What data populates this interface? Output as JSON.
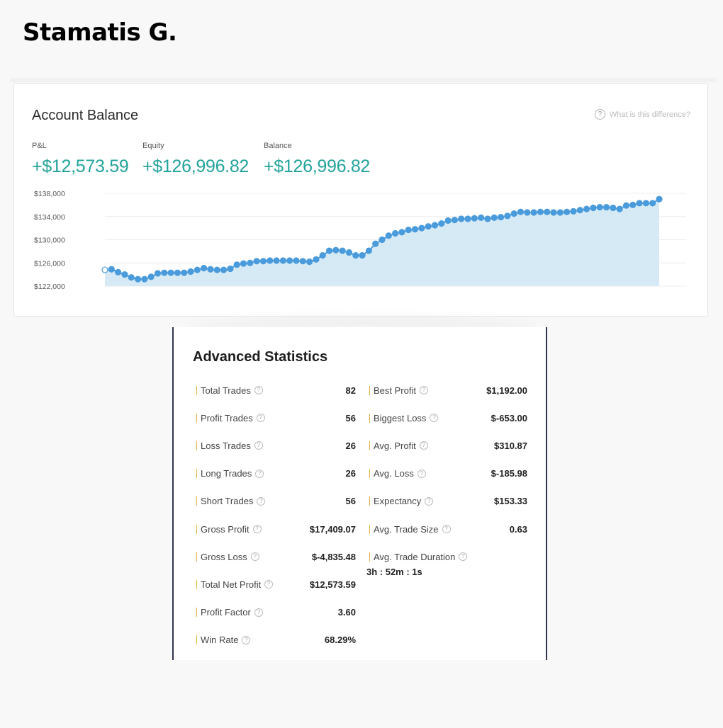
{
  "owner_name": "Stamatis G.",
  "account_card": {
    "title": "Account Balance",
    "help_text": "What is this difference?",
    "metrics": {
      "pnl_label": "P&L",
      "pnl_value": "+$12,573.59",
      "equity_label": "Equity",
      "equity_value": "+$126,996.82",
      "balance_label": "Balance",
      "balance_value": "+$126,996.82"
    },
    "accent_color": "#22a39a"
  },
  "chart_data": {
    "type": "area",
    "title": "",
    "xlabel": "",
    "ylabel": "",
    "ylim": [
      122000,
      138000
    ],
    "y_ticks": [
      "$138,000",
      "$134,000",
      "$130,000",
      "$126,000",
      "$122,000"
    ],
    "y_tick_values": [
      138000,
      134000,
      130000,
      126000,
      122000
    ],
    "grid": true,
    "line_color": "#4a9bdc",
    "fill_color": "#d6eaf6",
    "series": [
      {
        "values": [
          124800,
          124900,
          124400,
          124000,
          123500,
          123200,
          123200,
          123600,
          124200,
          124300,
          124300,
          124300,
          124300,
          124500,
          124800,
          125100,
          124900,
          124800,
          124800,
          125000,
          125700,
          125900,
          126000,
          126300,
          126300,
          126400,
          126400,
          126400,
          126400,
          126400,
          126300,
          126200,
          126600,
          127300,
          128100,
          128200,
          128100,
          127800,
          127300,
          127300,
          128100,
          129300,
          130000,
          130700,
          131100,
          131300,
          131700,
          131800,
          132000,
          132300,
          132500,
          132800,
          133300,
          133400,
          133600,
          133600,
          133700,
          133800,
          133600,
          133800,
          133900,
          134100,
          134500,
          134800,
          134700,
          134700,
          134800,
          134800,
          134700,
          134700,
          134800,
          134900,
          135100,
          135300,
          135500,
          135600,
          135600,
          135500,
          135300,
          135900,
          136000,
          136300,
          136300,
          136300,
          137000
        ]
      }
    ]
  },
  "advanced_stats": {
    "title": "Advanced Statistics",
    "left": [
      {
        "label": "Total Trades",
        "value": "82"
      },
      {
        "label": "Profit Trades",
        "value": "56"
      },
      {
        "label": "Loss Trades",
        "value": "26"
      },
      {
        "label": "Long Trades",
        "value": "26"
      },
      {
        "label": "Short Trades",
        "value": "56"
      },
      {
        "label": "Gross Profit",
        "value": "$17,409.07"
      },
      {
        "label": "Gross Loss",
        "value": "$-4,835.48"
      },
      {
        "label": "Total Net Profit",
        "value": "$12,573.59"
      },
      {
        "label": "Profit Factor",
        "value": "3.60"
      },
      {
        "label": "Win Rate",
        "value": "68.29%"
      }
    ],
    "right": [
      {
        "label": "Best Profit",
        "value": "$1,192.00"
      },
      {
        "label": "Biggest Loss",
        "value": "$-653.00"
      },
      {
        "label": "Avg. Profit",
        "value": "$310.87"
      },
      {
        "label": "Avg. Loss",
        "value": "$-185.98"
      },
      {
        "label": "Expectancy",
        "value": "$153.33"
      },
      {
        "label": "Avg. Trade Size",
        "value": "0.63"
      },
      {
        "label": "Avg. Trade Duration",
        "value": "3h : 52m : 1s"
      }
    ],
    "marker_color": "#e3b23c"
  },
  "icons": {
    "help": "question-circle-icon"
  }
}
